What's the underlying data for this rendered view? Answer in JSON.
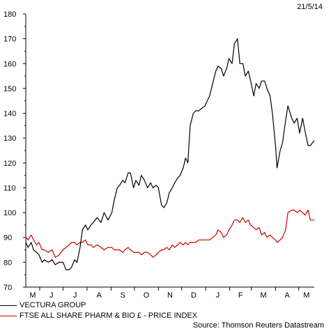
{
  "header": {
    "date": "21/5/14"
  },
  "chart_data": {
    "type": "line",
    "ylim": [
      70,
      180
    ],
    "yticks": [
      70,
      80,
      90,
      100,
      110,
      120,
      130,
      140,
      150,
      160,
      170,
      180
    ],
    "xtick_labels": [
      "M",
      "J",
      "J",
      "A",
      "S",
      "O",
      "N",
      "D",
      "J",
      "F",
      "M",
      "A",
      "M"
    ],
    "x_start": "2013-05-14",
    "x_end": "2014-05-21",
    "grid": false,
    "legend_position": "bottom-left",
    "series": [
      {
        "name": "VECTURA GROUP",
        "color": "#000000",
        "points": [
          [
            "2013-05-14",
            88
          ],
          [
            "2013-05-17",
            86
          ],
          [
            "2013-05-21",
            88
          ],
          [
            "2013-05-24",
            85
          ],
          [
            "2013-05-28",
            84
          ],
          [
            "2013-05-31",
            83
          ],
          [
            "2013-06-04",
            80
          ],
          [
            "2013-06-07",
            81
          ],
          [
            "2013-06-12",
            80
          ],
          [
            "2013-06-17",
            81
          ],
          [
            "2013-06-21",
            79
          ],
          [
            "2013-06-26",
            80
          ],
          [
            "2013-07-01",
            80
          ],
          [
            "2013-07-05",
            77
          ],
          [
            "2013-07-09",
            77
          ],
          [
            "2013-07-12",
            78
          ],
          [
            "2013-07-16",
            81
          ],
          [
            "2013-07-19",
            80
          ],
          [
            "2013-07-23",
            86
          ],
          [
            "2013-07-26",
            93
          ],
          [
            "2013-07-30",
            95
          ],
          [
            "2013-08-02",
            93
          ],
          [
            "2013-08-06",
            95
          ],
          [
            "2013-08-09",
            96
          ],
          [
            "2013-08-14",
            98
          ],
          [
            "2013-08-19",
            96
          ],
          [
            "2013-08-23",
            100
          ],
          [
            "2013-08-28",
            97
          ],
          [
            "2013-09-02",
            100
          ],
          [
            "2013-09-05",
            105
          ],
          [
            "2013-09-09",
            110
          ],
          [
            "2013-09-12",
            111
          ],
          [
            "2013-09-16",
            113
          ],
          [
            "2013-09-19",
            112
          ],
          [
            "2013-09-23",
            116
          ],
          [
            "2013-09-26",
            116
          ],
          [
            "2013-09-30",
            110
          ],
          [
            "2013-10-03",
            113
          ],
          [
            "2013-10-07",
            111
          ],
          [
            "2013-10-10",
            115
          ],
          [
            "2013-10-14",
            113
          ],
          [
            "2013-10-18",
            110
          ],
          [
            "2013-10-22",
            112
          ],
          [
            "2013-10-25",
            110
          ],
          [
            "2013-10-29",
            111
          ],
          [
            "2013-11-01",
            110
          ],
          [
            "2013-11-05",
            103
          ],
          [
            "2013-11-08",
            102
          ],
          [
            "2013-11-12",
            104
          ],
          [
            "2013-11-15",
            108
          ],
          [
            "2013-11-19",
            110
          ],
          [
            "2013-11-22",
            112
          ],
          [
            "2013-11-26",
            114
          ],
          [
            "2013-11-29",
            115
          ],
          [
            "2013-12-03",
            118
          ],
          [
            "2013-12-06",
            122
          ],
          [
            "2013-12-09",
            120
          ],
          [
            "2013-12-12",
            135
          ],
          [
            "2013-12-16",
            140
          ],
          [
            "2013-12-19",
            141
          ],
          [
            "2013-12-23",
            141
          ],
          [
            "2013-12-31",
            143
          ],
          [
            "2014-01-06",
            147
          ],
          [
            "2014-01-10",
            152
          ],
          [
            "2014-01-14",
            157
          ],
          [
            "2014-01-17",
            159
          ],
          [
            "2014-01-21",
            158
          ],
          [
            "2014-01-24",
            155
          ],
          [
            "2014-01-28",
            158
          ],
          [
            "2014-01-31",
            162
          ],
          [
            "2014-02-04",
            160
          ],
          [
            "2014-02-07",
            168
          ],
          [
            "2014-02-11",
            170
          ],
          [
            "2014-02-14",
            160
          ],
          [
            "2014-02-18",
            160
          ],
          [
            "2014-02-21",
            155
          ],
          [
            "2014-02-25",
            157
          ],
          [
            "2014-02-28",
            153
          ],
          [
            "2014-03-04",
            147
          ],
          [
            "2014-03-07",
            152
          ],
          [
            "2014-03-11",
            150
          ],
          [
            "2014-03-14",
            153
          ],
          [
            "2014-03-18",
            153
          ],
          [
            "2014-03-21",
            150
          ],
          [
            "2014-03-25",
            147
          ],
          [
            "2014-03-28",
            140
          ],
          [
            "2014-04-01",
            127
          ],
          [
            "2014-04-03",
            118
          ],
          [
            "2014-04-07",
            125
          ],
          [
            "2014-04-10",
            128
          ],
          [
            "2014-04-14",
            137
          ],
          [
            "2014-04-17",
            143
          ],
          [
            "2014-04-22",
            138
          ],
          [
            "2014-04-25",
            136
          ],
          [
            "2014-04-29",
            138
          ],
          [
            "2014-05-02",
            132
          ],
          [
            "2014-05-06",
            138
          ],
          [
            "2014-05-09",
            133
          ],
          [
            "2014-05-13",
            127
          ],
          [
            "2014-05-16",
            127
          ],
          [
            "2014-05-21",
            129
          ]
        ]
      },
      {
        "name": "FTSE ALL SHARE PHARM & BIO £ - PRICE INDEX",
        "color": "#cc0000",
        "points": [
          [
            "2013-05-14",
            90
          ],
          [
            "2013-05-17",
            89
          ],
          [
            "2013-05-21",
            91
          ],
          [
            "2013-05-24",
            89
          ],
          [
            "2013-05-28",
            87
          ],
          [
            "2013-05-31",
            88
          ],
          [
            "2013-06-04",
            85
          ],
          [
            "2013-06-07",
            85
          ],
          [
            "2013-06-12",
            84
          ],
          [
            "2013-06-17",
            85
          ],
          [
            "2013-06-21",
            82
          ],
          [
            "2013-06-26",
            83
          ],
          [
            "2013-07-01",
            85
          ],
          [
            "2013-07-05",
            86
          ],
          [
            "2013-07-09",
            87
          ],
          [
            "2013-07-12",
            88
          ],
          [
            "2013-07-16",
            88
          ],
          [
            "2013-07-19",
            87
          ],
          [
            "2013-07-23",
            88
          ],
          [
            "2013-07-26",
            88
          ],
          [
            "2013-07-30",
            89
          ],
          [
            "2013-08-02",
            87
          ],
          [
            "2013-08-06",
            87
          ],
          [
            "2013-08-09",
            86
          ],
          [
            "2013-08-14",
            87
          ],
          [
            "2013-08-19",
            86
          ],
          [
            "2013-08-23",
            85
          ],
          [
            "2013-08-28",
            86
          ],
          [
            "2013-09-02",
            86
          ],
          [
            "2013-09-05",
            85
          ],
          [
            "2013-09-09",
            85
          ],
          [
            "2013-09-12",
            85
          ],
          [
            "2013-09-16",
            84
          ],
          [
            "2013-09-19",
            85
          ],
          [
            "2013-09-23",
            86
          ],
          [
            "2013-09-26",
            85
          ],
          [
            "2013-09-30",
            84
          ],
          [
            "2013-10-03",
            84
          ],
          [
            "2013-10-07",
            84
          ],
          [
            "2013-10-10",
            83
          ],
          [
            "2013-10-14",
            84
          ],
          [
            "2013-10-18",
            84
          ],
          [
            "2013-10-22",
            83
          ],
          [
            "2013-10-25",
            82
          ],
          [
            "2013-10-29",
            83
          ],
          [
            "2013-11-01",
            84
          ],
          [
            "2013-11-05",
            85
          ],
          [
            "2013-11-08",
            85
          ],
          [
            "2013-11-12",
            86
          ],
          [
            "2013-11-15",
            85
          ],
          [
            "2013-11-19",
            87
          ],
          [
            "2013-11-22",
            86
          ],
          [
            "2013-11-26",
            87
          ],
          [
            "2013-11-29",
            88
          ],
          [
            "2013-12-03",
            87
          ],
          [
            "2013-12-06",
            88
          ],
          [
            "2013-12-09",
            87
          ],
          [
            "2013-12-12",
            88
          ],
          [
            "2013-12-16",
            88
          ],
          [
            "2013-12-19",
            88
          ],
          [
            "2013-12-23",
            89
          ],
          [
            "2013-12-31",
            89
          ],
          [
            "2014-01-06",
            89
          ],
          [
            "2014-01-10",
            90
          ],
          [
            "2014-01-14",
            91
          ],
          [
            "2014-01-17",
            93
          ],
          [
            "2014-01-21",
            92
          ],
          [
            "2014-01-24",
            90
          ],
          [
            "2014-01-28",
            91
          ],
          [
            "2014-01-31",
            93
          ],
          [
            "2014-02-04",
            95
          ],
          [
            "2014-02-07",
            97
          ],
          [
            "2014-02-11",
            97
          ],
          [
            "2014-02-14",
            96
          ],
          [
            "2014-02-18",
            98
          ],
          [
            "2014-02-21",
            96
          ],
          [
            "2014-02-25",
            97
          ],
          [
            "2014-02-28",
            95
          ],
          [
            "2014-03-04",
            94
          ],
          [
            "2014-03-07",
            93
          ],
          [
            "2014-03-11",
            94
          ],
          [
            "2014-03-14",
            91
          ],
          [
            "2014-03-18",
            92
          ],
          [
            "2014-03-21",
            90
          ],
          [
            "2014-03-25",
            91
          ],
          [
            "2014-03-28",
            90
          ],
          [
            "2014-04-01",
            89
          ],
          [
            "2014-04-03",
            88
          ],
          [
            "2014-04-07",
            89
          ],
          [
            "2014-04-10",
            90
          ],
          [
            "2014-04-14",
            93
          ],
          [
            "2014-04-17",
            100
          ],
          [
            "2014-04-22",
            101
          ],
          [
            "2014-04-25",
            101
          ],
          [
            "2014-04-29",
            100
          ],
          [
            "2014-05-02",
            101
          ],
          [
            "2014-05-06",
            100
          ],
          [
            "2014-05-09",
            99
          ],
          [
            "2014-05-13",
            101
          ],
          [
            "2014-05-16",
            97
          ],
          [
            "2014-05-21",
            97
          ]
        ]
      }
    ]
  },
  "footer": {
    "source": "Source: Thomson Reuters Datastream"
  }
}
